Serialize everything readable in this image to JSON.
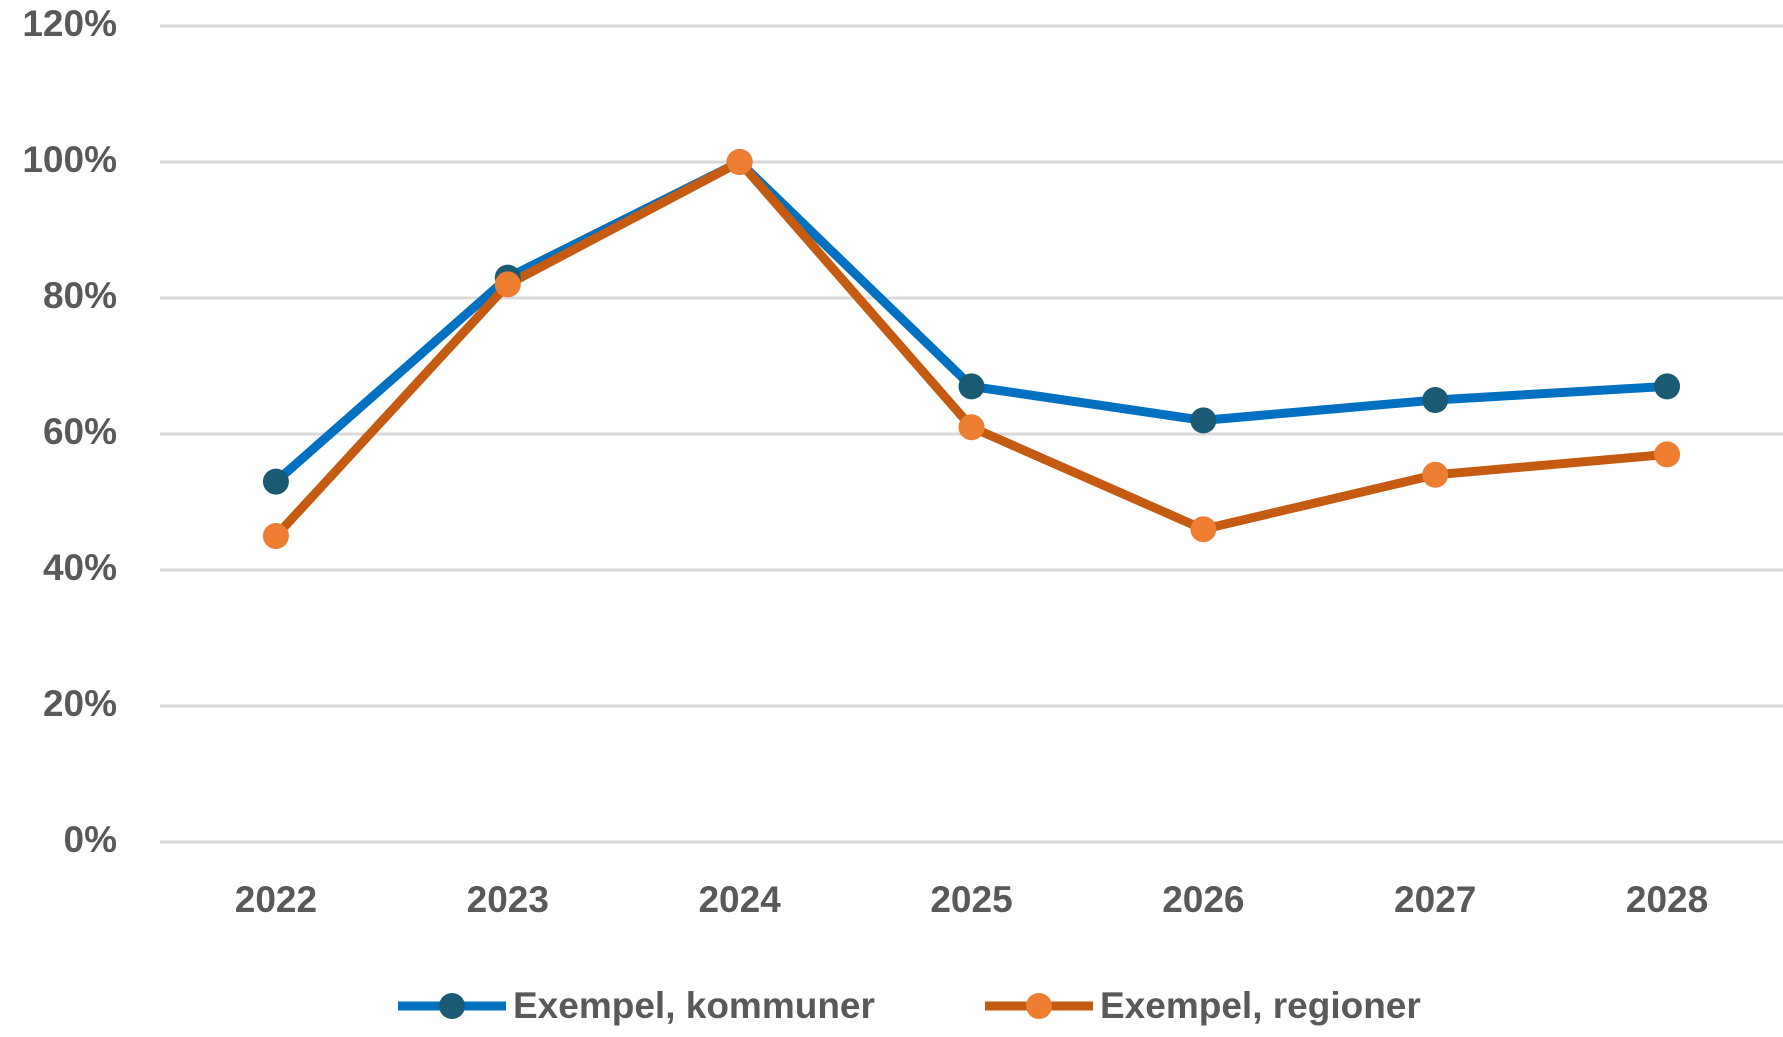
{
  "chart_data": {
    "type": "line",
    "categories": [
      "2022",
      "2023",
      "2024",
      "2025",
      "2026",
      "2027",
      "2028"
    ],
    "series": [
      {
        "name": "Exempel, kommuner",
        "color": "#0070c0",
        "marker_color": "#1b5a73",
        "values": [
          53,
          83,
          100,
          67,
          62,
          65,
          67
        ]
      },
      {
        "name": "Exempel, regioner",
        "color": "#c55a11",
        "marker_color": "#ed7d31",
        "values": [
          45,
          82,
          100,
          61,
          46,
          54,
          57
        ]
      }
    ],
    "ylim": [
      0,
      120
    ],
    "yticks": [
      {
        "value": 0,
        "label": "0%"
      },
      {
        "value": 20,
        "label": "20%"
      },
      {
        "value": 40,
        "label": "40%"
      },
      {
        "value": 60,
        "label": "60%"
      },
      {
        "value": 80,
        "label": "80%"
      },
      {
        "value": 100,
        "label": "100%"
      },
      {
        "value": 120,
        "label": "120%"
      }
    ],
    "grid": true,
    "legend": "bottom"
  }
}
